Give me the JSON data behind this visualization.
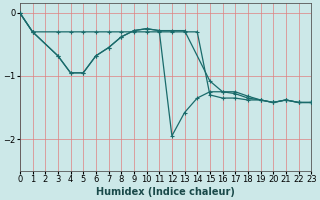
{
  "xlabel": "Humidex (Indice chaleur)",
  "bg_color": "#cce8e8",
  "line_color": "#1a6b6b",
  "xlim": [
    0,
    23
  ],
  "ylim": [
    -2.5,
    0.15
  ],
  "yticks": [
    0,
    -1,
    -2
  ],
  "xticks": [
    0,
    1,
    2,
    3,
    4,
    5,
    6,
    7,
    8,
    9,
    10,
    11,
    12,
    13,
    14,
    15,
    16,
    17,
    18,
    19,
    20,
    21,
    22,
    23
  ],
  "line1_x": [
    0,
    1,
    3,
    4,
    5,
    6,
    7,
    8,
    9,
    10,
    11,
    12,
    13,
    14,
    15,
    16,
    17,
    18,
    19,
    20,
    21,
    22,
    23
  ],
  "line1_y": [
    0.0,
    -0.3,
    -0.3,
    -0.3,
    -0.3,
    -0.3,
    -0.3,
    -0.3,
    -0.3,
    -0.3,
    -0.3,
    -0.3,
    -0.3,
    -0.3,
    -1.3,
    -1.35,
    -1.35,
    -1.38,
    -1.38,
    -1.42,
    -1.38,
    -1.42,
    -1.42
  ],
  "line2_x": [
    0,
    1,
    3,
    4,
    5,
    6,
    7,
    8,
    9,
    10,
    11,
    12,
    13,
    15,
    16,
    17,
    18,
    19,
    20,
    21,
    22,
    23
  ],
  "line2_y": [
    0.0,
    -0.3,
    -0.68,
    -0.95,
    -0.95,
    -0.68,
    -0.55,
    -0.38,
    -0.28,
    -0.25,
    -0.28,
    -0.28,
    -0.28,
    -1.08,
    -1.25,
    -1.25,
    -1.32,
    -1.38,
    -1.42,
    -1.38,
    -1.42,
    -1.42
  ],
  "line3_x": [
    0,
    1,
    3,
    4,
    5,
    6,
    7,
    8,
    9,
    10,
    11,
    12,
    13,
    14,
    15,
    16,
    17,
    18,
    19,
    20,
    21,
    22,
    23
  ],
  "line3_y": [
    0.0,
    -0.3,
    -0.68,
    -0.95,
    -0.95,
    -0.68,
    -0.55,
    -0.38,
    -0.28,
    -0.25,
    -0.28,
    -1.95,
    -1.58,
    -1.35,
    -1.25,
    -1.25,
    -1.28,
    -1.35,
    -1.38,
    -1.42,
    -1.38,
    -1.42,
    -1.42
  ]
}
